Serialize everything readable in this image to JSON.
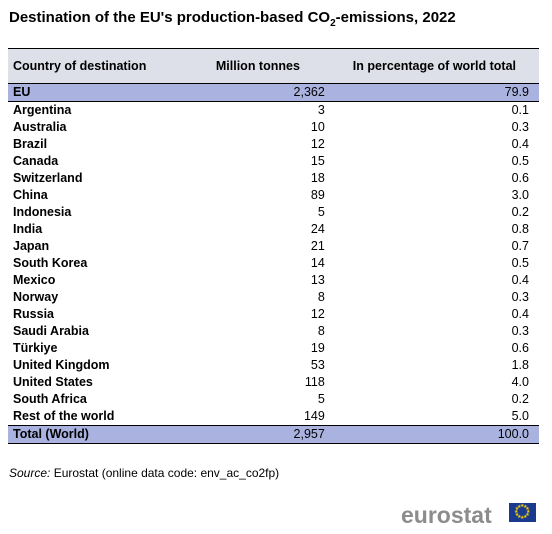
{
  "title_pre": "Destination of the EU's production-based CO",
  "title_sub": "2",
  "title_post": "-emissions, 2022",
  "columns": [
    "Country of destination",
    "Million tonnes",
    "In percentage of world total"
  ],
  "rows": [
    {
      "country": "EU",
      "mt": "2,362",
      "pct": "79.9"
    },
    {
      "country": "Argentina",
      "mt": "3",
      "pct": "0.1"
    },
    {
      "country": "Australia",
      "mt": "10",
      "pct": "0.3"
    },
    {
      "country": "Brazil",
      "mt": "12",
      "pct": "0.4"
    },
    {
      "country": "Canada",
      "mt": "15",
      "pct": "0.5"
    },
    {
      "country": "Switzerland",
      "mt": "18",
      "pct": "0.6"
    },
    {
      "country": "China",
      "mt": "89",
      "pct": "3.0"
    },
    {
      "country": "Indonesia",
      "mt": "5",
      "pct": "0.2"
    },
    {
      "country": "India",
      "mt": "24",
      "pct": "0.8"
    },
    {
      "country": "Japan",
      "mt": "21",
      "pct": "0.7"
    },
    {
      "country": "South Korea",
      "mt": "14",
      "pct": "0.5"
    },
    {
      "country": "Mexico",
      "mt": "13",
      "pct": "0.4"
    },
    {
      "country": "Norway",
      "mt": "8",
      "pct": "0.3"
    },
    {
      "country": "Russia",
      "mt": "12",
      "pct": "0.4"
    },
    {
      "country": "Saudi Arabia",
      "mt": "8",
      "pct": "0.3"
    },
    {
      "country": "Türkiye",
      "mt": "19",
      "pct": "0.6"
    },
    {
      "country": "United Kingdom",
      "mt": "53",
      "pct": "1.8"
    },
    {
      "country": "United States",
      "mt": "118",
      "pct": "4.0"
    },
    {
      "country": "South Africa",
      "mt": "5",
      "pct": "0.2"
    },
    {
      "country": "Rest of the world",
      "mt": "149",
      "pct": "5.0"
    },
    {
      "country": "Total (World)",
      "mt": "2,957",
      "pct": "100.0"
    }
  ],
  "source_label": "Source:",
  "source_text": " Eurostat (online data code: env_ac_co2fp)",
  "logo_text": "eurostat",
  "colors": {
    "header_bg": "#dde0e8",
    "highlight_bg": "#aab3df",
    "logo_gray": "#8c8c8c",
    "eu_blue": "#1a3a8f",
    "eu_star": "#f5d000"
  },
  "logo_icon": "eu-flag-icon"
}
